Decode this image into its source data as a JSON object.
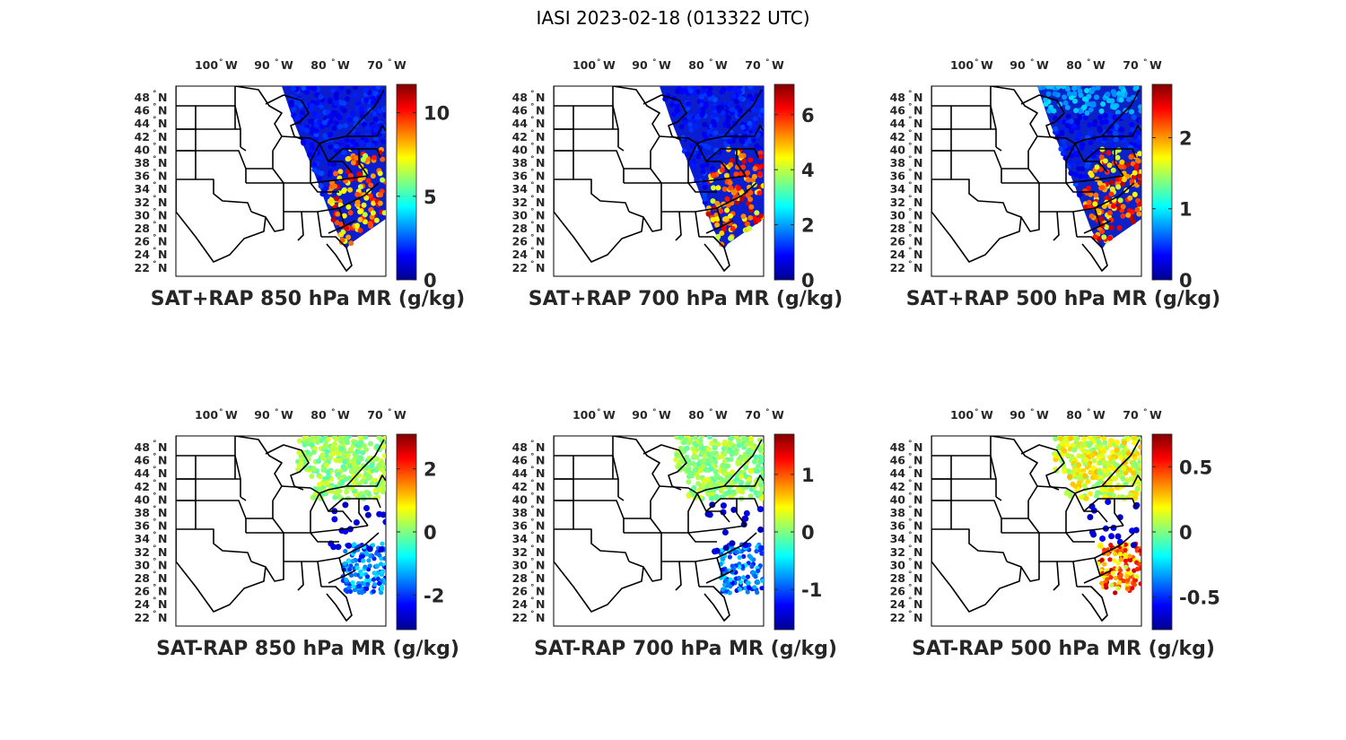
{
  "title": "IASI 2023-02-18 (013322 UTC)",
  "lon_labels": [
    "100",
    "90",
    "80",
    "70"
  ],
  "lon_hemisphere": "W",
  "lat_labels": [
    "48",
    "46",
    "44",
    "42",
    "40",
    "38",
    "36",
    "34",
    "32",
    "30",
    "28",
    "26",
    "24",
    "22"
  ],
  "lat_hemisphere": "N",
  "degree_symbol": "°",
  "colormap": "jet",
  "panels": [
    {
      "id": "sat-rap-sum-850",
      "title": "SAT+RAP 850 hPa MR (g/kg)",
      "colorbar": {
        "min": 0,
        "max": 11.7,
        "ticks": [
          0,
          5,
          10
        ]
      }
    },
    {
      "id": "sat-rap-sum-700",
      "title": "SAT+RAP 700 hPa MR (g/kg)",
      "colorbar": {
        "min": 0,
        "max": 7.1,
        "ticks": [
          0,
          2,
          4,
          6
        ]
      }
    },
    {
      "id": "sat-rap-sum-500",
      "title": "SAT+RAP 500 hPa MR (g/kg)",
      "colorbar": {
        "min": 0,
        "max": 2.75,
        "ticks": [
          0,
          1,
          2
        ]
      }
    },
    {
      "id": "sat-rap-diff-850",
      "title": "SAT-RAP 850 hPa MR (g/kg)",
      "colorbar": {
        "min": -3.1,
        "max": 3.1,
        "ticks": [
          -2,
          0,
          2
        ]
      }
    },
    {
      "id": "sat-rap-diff-700",
      "title": "SAT-RAP 700 hPa MR (g/kg)",
      "colorbar": {
        "min": -1.7,
        "max": 1.7,
        "ticks": [
          -1,
          0,
          1
        ]
      }
    },
    {
      "id": "sat-rap-diff-500",
      "title": "SAT-RAP 500 hPa MR (g/kg)",
      "colorbar": {
        "min": -0.75,
        "max": 0.75,
        "ticks": [
          -0.5,
          0,
          0.5
        ]
      }
    }
  ]
}
